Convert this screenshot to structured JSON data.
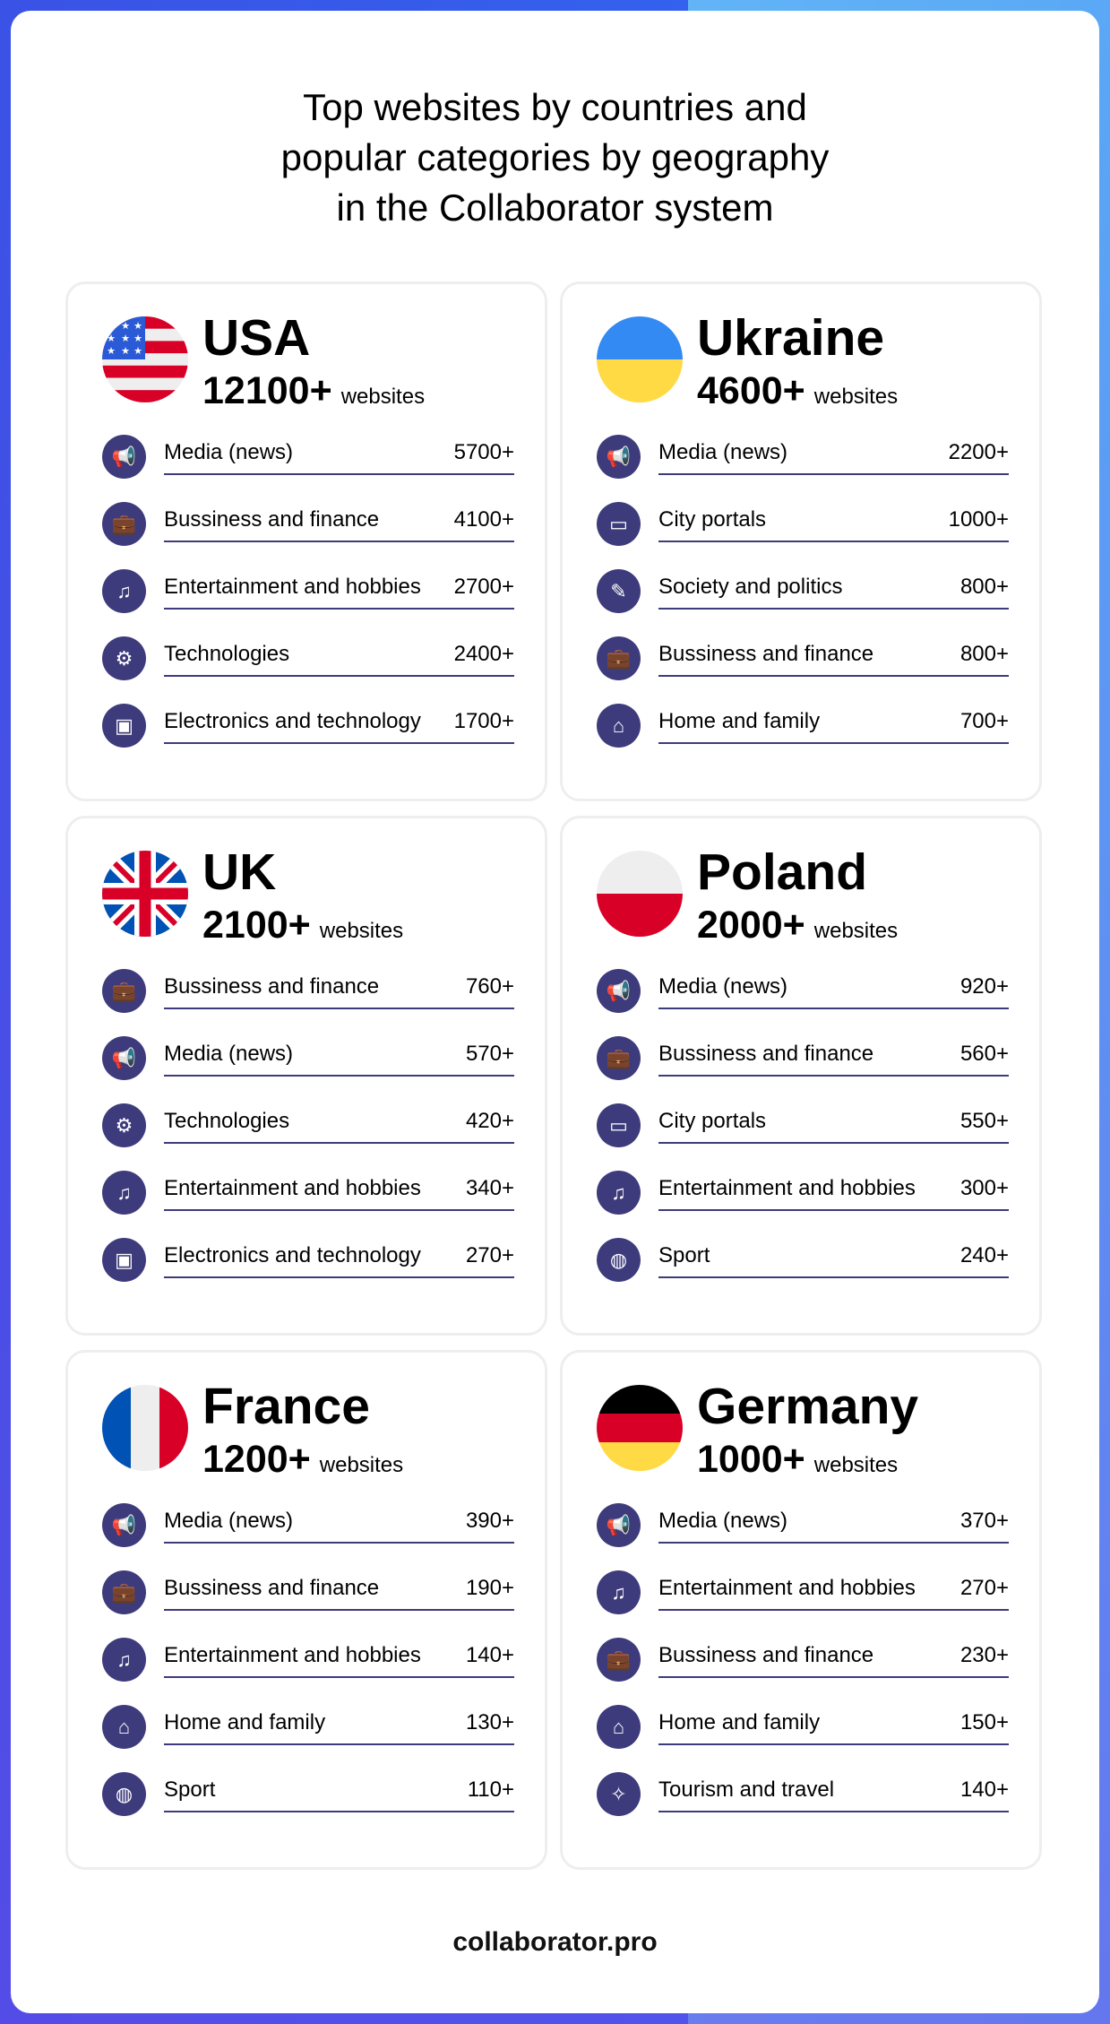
{
  "title_lines": [
    "Top websites by countries and",
    "popular categories by geography",
    "in the Collaborator system"
  ],
  "footer": "collaborator.pro",
  "accent_color": "#3e3b7c",
  "countries": [
    {
      "name": "USA",
      "count": "12100+",
      "unit": "websites",
      "flag": "usa",
      "items": [
        {
          "icon": "megaphone-icon",
          "label": "Media (news)",
          "value": "5700+"
        },
        {
          "icon": "briefcase-icon",
          "label": "Bussiness and finance",
          "value": "4100+"
        },
        {
          "icon": "entertainment-icon",
          "label": "Entertainment and hobbies",
          "value": "2700+"
        },
        {
          "icon": "gear-circuit-icon",
          "label": "Technologies",
          "value": "2400+"
        },
        {
          "icon": "chip-icon",
          "label": "Electronics and technology",
          "value": "1700+"
        }
      ]
    },
    {
      "name": "Ukraine",
      "count": "4600+",
      "unit": "websites",
      "flag": "ukraine",
      "items": [
        {
          "icon": "megaphone-icon",
          "label": "Media (news)",
          "value": "2200+"
        },
        {
          "icon": "browser-window-icon",
          "label": "City portals",
          "value": "1000+"
        },
        {
          "icon": "document-pen-icon",
          "label": "Society and politics",
          "value": "800+"
        },
        {
          "icon": "briefcase-icon",
          "label": "Bussiness and finance",
          "value": "800+"
        },
        {
          "icon": "home-family-icon",
          "label": "Home and family",
          "value": "700+"
        }
      ]
    },
    {
      "name": "UK",
      "count": "2100+",
      "unit": "websites",
      "flag": "uk",
      "items": [
        {
          "icon": "briefcase-icon",
          "label": "Bussiness and finance",
          "value": "760+"
        },
        {
          "icon": "megaphone-icon",
          "label": "Media (news)",
          "value": "570+"
        },
        {
          "icon": "gear-circuit-icon",
          "label": "Technologies",
          "value": "420+"
        },
        {
          "icon": "entertainment-icon",
          "label": "Entertainment and hobbies",
          "value": "340+"
        },
        {
          "icon": "chip-icon",
          "label": "Electronics and technology",
          "value": "270+"
        }
      ]
    },
    {
      "name": "Poland",
      "count": "2000+",
      "unit": "websites",
      "flag": "poland",
      "items": [
        {
          "icon": "megaphone-icon",
          "label": "Media (news)",
          "value": "920+"
        },
        {
          "icon": "briefcase-icon",
          "label": "Bussiness and finance",
          "value": "560+"
        },
        {
          "icon": "browser-window-icon",
          "label": "City portals",
          "value": "550+"
        },
        {
          "icon": "entertainment-icon",
          "label": "Entertainment and hobbies",
          "value": "300+"
        },
        {
          "icon": "basketball-icon",
          "label": "Sport",
          "value": "240+"
        }
      ]
    },
    {
      "name": "France",
      "count": "1200+",
      "unit": "websites",
      "flag": "france",
      "items": [
        {
          "icon": "megaphone-icon",
          "label": "Media (news)",
          "value": "390+"
        },
        {
          "icon": "briefcase-icon",
          "label": "Bussiness and finance",
          "value": "190+"
        },
        {
          "icon": "entertainment-icon",
          "label": "Entertainment and hobbies",
          "value": "140+"
        },
        {
          "icon": "home-family-icon",
          "label": "Home and family",
          "value": "130+"
        },
        {
          "icon": "basketball-icon",
          "label": "Sport",
          "value": "110+"
        }
      ]
    },
    {
      "name": "Germany",
      "count": "1000+",
      "unit": "websites",
      "flag": "germany",
      "items": [
        {
          "icon": "megaphone-icon",
          "label": "Media (news)",
          "value": "370+"
        },
        {
          "icon": "entertainment-icon",
          "label": "Entertainment and hobbies",
          "value": "270+"
        },
        {
          "icon": "briefcase-icon",
          "label": "Bussiness and finance",
          "value": "230+"
        },
        {
          "icon": "home-family-icon",
          "label": "Home and family",
          "value": "150+"
        },
        {
          "icon": "compass-icon",
          "label": "Tourism and travel",
          "value": "140+"
        }
      ]
    }
  ]
}
